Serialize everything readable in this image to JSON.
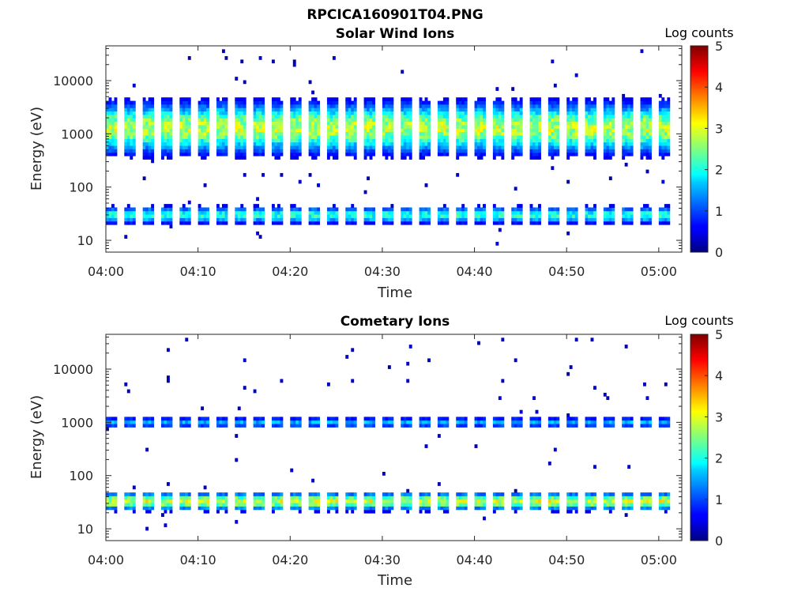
{
  "figure": {
    "title": "RPCICA160901T04.PNG"
  },
  "chart_data": [
    {
      "type": "heatmap",
      "title": "Solar Wind Ions",
      "xlabel": "Time",
      "ylabel": "Energy (eV)",
      "x_ticks": [
        "04:00",
        "04:10",
        "04:20",
        "04:30",
        "04:40",
        "04:50",
        "05:00"
      ],
      "x_range_min": [
        0,
        62.5
      ],
      "y_ticks": [
        "10",
        "100",
        "1000",
        "10000"
      ],
      "y_scale": "log",
      "y_range_ev": [
        6,
        45000
      ],
      "colorbar": {
        "title": "Log counts",
        "range": [
          0,
          5
        ],
        "ticks": [
          "0",
          "1",
          "2",
          "3",
          "4",
          "5"
        ],
        "colormap": "jet"
      },
      "scan_period_min": 2,
      "scans": 31,
      "bands": [
        {
          "name": "solar-wind-peak",
          "center_ev": 1300,
          "spread_decades": 0.3,
          "peak_log_counts": 3.0
        },
        {
          "name": "low-energy",
          "center_ev": 30,
          "spread_decades": 0.1,
          "peak_log_counts": 2.2
        }
      ]
    },
    {
      "type": "heatmap",
      "title": "Cometary Ions",
      "xlabel": "Time",
      "ylabel": "Energy (eV)",
      "x_ticks": [
        "04:00",
        "04:10",
        "04:20",
        "04:30",
        "04:40",
        "04:50",
        "05:00"
      ],
      "x_range_min": [
        0,
        62.5
      ],
      "y_ticks": [
        "10",
        "100",
        "1000",
        "10000"
      ],
      "y_scale": "log",
      "y_range_ev": [
        6,
        45000
      ],
      "colorbar": {
        "title": "Log counts",
        "range": [
          0,
          5
        ],
        "ticks": [
          "0",
          "1",
          "2",
          "3",
          "4",
          "5"
        ],
        "colormap": "jet"
      },
      "scan_period_min": 2,
      "scans": 31,
      "bands": [
        {
          "name": "sw-contamination",
          "center_ev": 1000,
          "spread_decades": 0.06,
          "peak_log_counts": 1.6
        },
        {
          "name": "cometary-low",
          "center_ev": 33,
          "spread_decades": 0.1,
          "peak_log_counts": 3.1
        }
      ]
    }
  ]
}
